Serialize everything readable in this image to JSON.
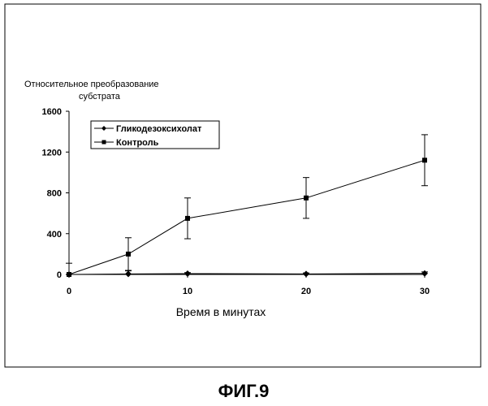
{
  "figure_caption": "ФИГ.9",
  "chart_data": {
    "type": "line",
    "ylabel_line1": "Относительное преобразование",
    "ylabel_line2": "субстрата",
    "xlabel": "Время в минутах",
    "xlim": [
      0,
      30
    ],
    "ylim": [
      0,
      1600
    ],
    "xticks": [
      0,
      10,
      20,
      30
    ],
    "yticks": [
      0,
      400,
      800,
      1200,
      1600
    ],
    "grid": false,
    "legend_position": "top-left",
    "series": [
      {
        "name": "Гликодезоксихолат",
        "marker": "diamond",
        "color": "#000000",
        "x": [
          0,
          5,
          10,
          20,
          30
        ],
        "y": [
          0,
          5,
          8,
          5,
          10
        ],
        "error": [
          110,
          30,
          10,
          10,
          15
        ]
      },
      {
        "name": "Контроль",
        "marker": "square",
        "color": "#000000",
        "x": [
          0,
          5,
          10,
          20,
          30
        ],
        "y": [
          0,
          200,
          550,
          750,
          1120
        ],
        "error": [
          0,
          160,
          200,
          200,
          250
        ]
      }
    ]
  }
}
